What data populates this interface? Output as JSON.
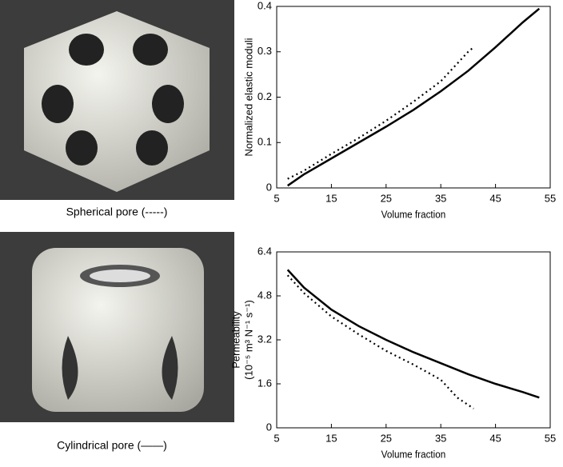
{
  "images": [
    {
      "caption": "Spherical pore (-----)"
    },
    {
      "caption": "Cylindrical pore (——)"
    }
  ],
  "chart_data": [
    {
      "type": "line",
      "x_label": "Volume fraction",
      "y_label": [
        "Normalized elastic moduli"
      ],
      "xlim": [
        5,
        55
      ],
      "xticks": [
        5,
        15,
        25,
        35,
        45,
        55
      ],
      "ylim": [
        0,
        0.4
      ],
      "yticks": [
        0,
        0.1,
        0.2,
        0.3,
        0.4
      ],
      "series": [
        {
          "color": "#000000",
          "dash": "solid",
          "x": [
            7,
            10,
            15,
            20,
            25,
            30,
            35,
            40,
            45,
            50,
            53
          ],
          "values": [
            0.005,
            0.03,
            0.065,
            0.1,
            0.135,
            0.172,
            0.213,
            0.258,
            0.31,
            0.365,
            0.395
          ]
        },
        {
          "color": "#000000",
          "dash": "dotted",
          "x": [
            7,
            10,
            15,
            20,
            25,
            30,
            35,
            40,
            41
          ],
          "values": [
            0.02,
            0.038,
            0.075,
            0.11,
            0.148,
            0.19,
            0.235,
            0.3,
            0.31
          ]
        }
      ]
    },
    {
      "type": "line",
      "x_label": "Volume fraction",
      "y_label": [
        "Permeability",
        "(10⁻⁵ m³ N⁻¹ s⁻¹)"
      ],
      "xlim": [
        5,
        55
      ],
      "xticks": [
        5,
        15,
        25,
        35,
        45,
        55
      ],
      "ylim": [
        0,
        6.4
      ],
      "yticks": [
        0,
        1.6,
        3.2,
        4.8,
        6.4
      ],
      "series": [
        {
          "color": "#000000",
          "dash": "solid",
          "x": [
            7,
            10,
            15,
            20,
            25,
            30,
            35,
            40,
            45,
            50,
            53
          ],
          "values": [
            5.75,
            5.1,
            4.3,
            3.7,
            3.2,
            2.75,
            2.35,
            1.95,
            1.6,
            1.3,
            1.1
          ]
        },
        {
          "color": "#000000",
          "dash": "dotted",
          "x": [
            7,
            10,
            15,
            20,
            25,
            30,
            35,
            38,
            41
          ],
          "values": [
            5.55,
            4.9,
            4.05,
            3.4,
            2.8,
            2.3,
            1.75,
            1.1,
            0.7
          ]
        }
      ]
    }
  ]
}
